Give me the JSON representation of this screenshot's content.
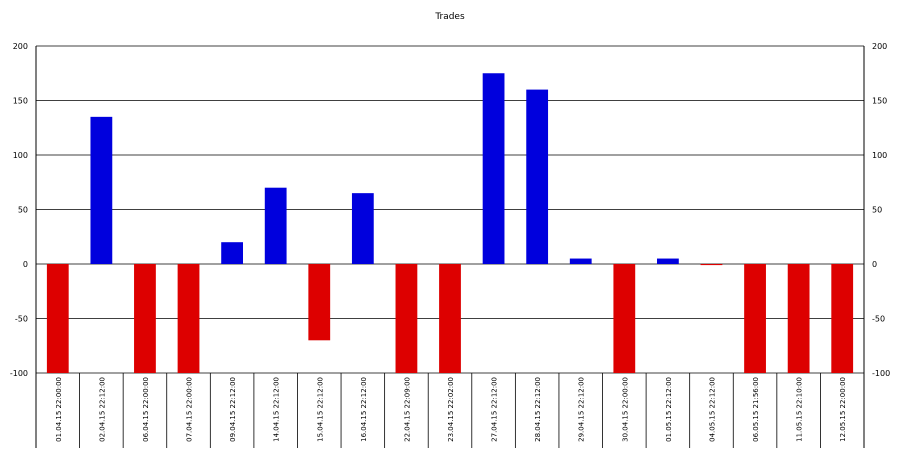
{
  "chart_data": {
    "type": "bar",
    "title": "Trades",
    "xlabel": "",
    "ylabel": "",
    "ylim": [
      -100,
      200
    ],
    "yticks": [
      -100,
      -50,
      0,
      50,
      100,
      150,
      200
    ],
    "grid": true,
    "right_axis": true,
    "categories": [
      "01.04.15 22:00:00",
      "02.04.15 22:12:00",
      "06.04.15 22:00:00",
      "07.04.15 22:00:00",
      "09.04.15 22:12:00",
      "14.04.15 22:12:00",
      "15.04.15 22:12:00",
      "16.04.15 22:12:00",
      "22.04.15 22:09:00",
      "23.04.15 22:02:00",
      "27.04.15 22:12:00",
      "28.04.15 22:12:00",
      "29.04.15 22:12:00",
      "30.04.15 22:00:00",
      "01.05.15 22:12:00",
      "04.05.15 22:12:00",
      "06.05.15 21:56:00",
      "11.05.15 22:10:00",
      "12.05.15 22:00:00"
    ],
    "values": [
      -100,
      135,
      -100,
      -100,
      20,
      70,
      -70,
      65,
      -100,
      -100,
      175,
      160,
      5,
      -100,
      5,
      -1,
      -100,
      -100,
      -100
    ],
    "colors": {
      "positive": "#0000dd",
      "negative": "#dd0000"
    }
  }
}
